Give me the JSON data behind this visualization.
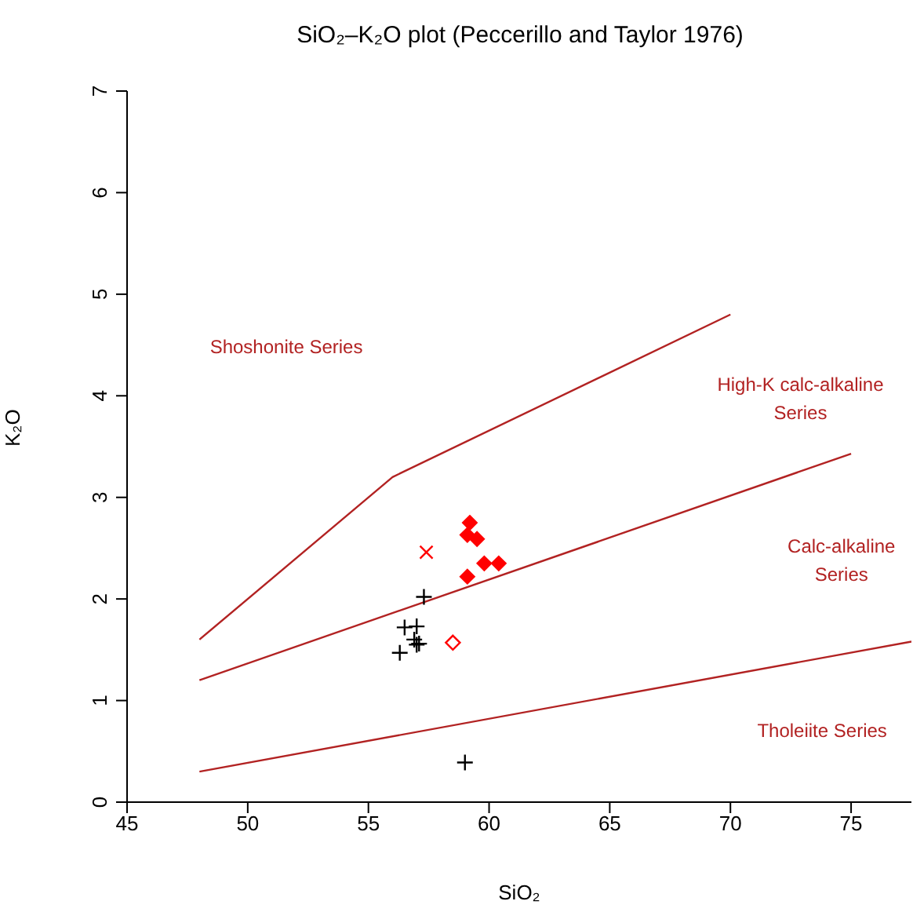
{
  "chart_data": {
    "type": "scatter",
    "title": "SiO₂–K₂O plot (Peccerillo and Taylor 1976)",
    "xlabel": "SiO₂",
    "ylabel": "K₂O",
    "xlim": [
      45,
      77.5
    ],
    "ylim": [
      0,
      7
    ],
    "xticks": [
      45,
      50,
      55,
      60,
      65,
      70,
      75
    ],
    "yticks": [
      0,
      1,
      2,
      3,
      4,
      5,
      6,
      7
    ],
    "grid": false,
    "series": [
      {
        "type": "line",
        "color": "#b22222",
        "marker": "none",
        "line_style": "solid",
        "x": [
          48,
          77.5
        ],
        "values": [
          0.3,
          1.58
        ]
      },
      {
        "type": "line",
        "color": "#b22222",
        "marker": "none",
        "line_style": "solid",
        "x": [
          48,
          75
        ],
        "values": [
          1.2,
          3.43
        ]
      },
      {
        "type": "line",
        "color": "#b22222",
        "marker": "none",
        "line_style": "solid",
        "x": [
          48,
          56,
          70
        ],
        "values": [
          1.6,
          3.2,
          4.8
        ]
      },
      {
        "color": "#ff0000",
        "marker": "diamond",
        "x": [
          59.2,
          59.1,
          59.5,
          59.8,
          60.4,
          59.1
        ],
        "values": [
          2.75,
          2.63,
          2.59,
          2.35,
          2.35,
          2.22
        ]
      },
      {
        "color": "#ff0000",
        "marker": "cross",
        "x": [
          57.4
        ],
        "values": [
          2.46
        ]
      },
      {
        "color": "#ff0000",
        "marker": "diamond-open",
        "x": [
          58.5
        ],
        "values": [
          1.57
        ]
      },
      {
        "color": "#000000",
        "marker": "plus",
        "x": [
          57.3,
          56.5,
          57.0,
          56.9,
          57.1,
          57.0,
          56.3,
          59.0
        ],
        "values": [
          2.02,
          1.72,
          1.73,
          1.6,
          1.56,
          1.55,
          1.47,
          0.39
        ]
      }
    ],
    "annotations": [
      "Shoshonite Series",
      "High-K calc-alkaline\nSeries",
      "Calc-alkaline\nSeries",
      "Tholeiite Series"
    ]
  }
}
